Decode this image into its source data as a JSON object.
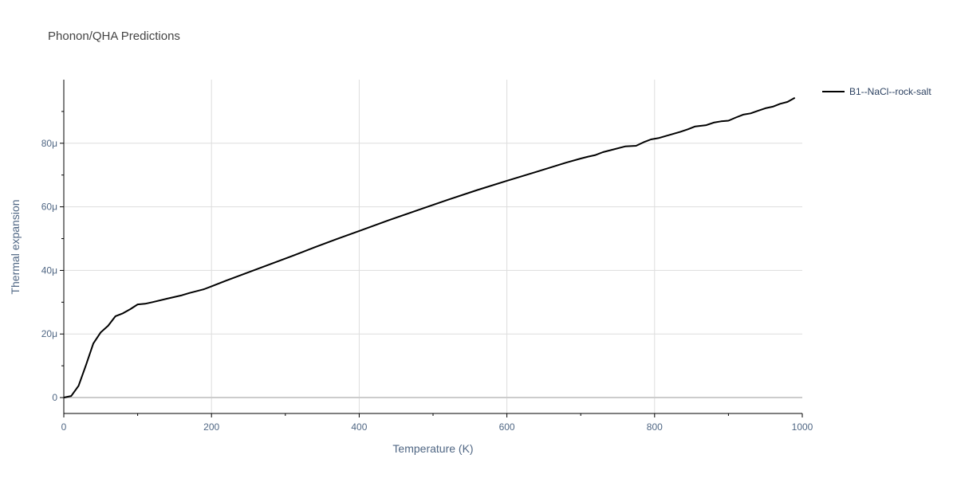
{
  "title": "Phonon/QHA Predictions",
  "colors": {
    "series": "#000000",
    "grid": "#dddddd",
    "text": "#506784"
  },
  "chart_data": {
    "type": "line",
    "xlabel": "Temperature (K)",
    "ylabel": "Thermal expansion",
    "xlim": [
      0,
      1000
    ],
    "ylim": [
      -5,
      100
    ],
    "xticks": [
      0,
      200,
      400,
      600,
      800,
      1000
    ],
    "xtick_labels": [
      "0",
      "200",
      "400",
      "600",
      "800",
      "1000"
    ],
    "yticks": [
      0,
      20,
      40,
      60,
      80
    ],
    "ytick_labels": [
      "0",
      "20μ",
      "40μ",
      "60μ",
      "80μ"
    ],
    "grid": true,
    "legend_position": "top-right",
    "series": [
      {
        "name": "B1--NaCl--rock-salt",
        "color": "#000000",
        "x": [
          0,
          10,
          20,
          30,
          40,
          50,
          60,
          70,
          80,
          90,
          100,
          110,
          120,
          140,
          160,
          170,
          190,
          200,
          220,
          250,
          280,
          310,
          340,
          370,
          400,
          440,
          480,
          520,
          560,
          600,
          640,
          680,
          700,
          710,
          720,
          730,
          740,
          760,
          775,
          785,
          795,
          805,
          820,
          835,
          845,
          855,
          870,
          880,
          890,
          900,
          910,
          920,
          930,
          940,
          950,
          960,
          970,
          980,
          990
        ],
        "y": [
          0,
          0.5,
          3.7,
          10.2,
          17.0,
          20.5,
          22.6,
          25.6,
          26.5,
          27.8,
          29.3,
          29.5,
          30.0,
          31.1,
          32.2,
          32.9,
          34.1,
          35.0,
          36.8,
          39.4,
          42.0,
          44.6,
          47.3,
          49.9,
          52.4,
          55.8,
          59.0,
          62.2,
          65.3,
          68.2,
          71.0,
          73.9,
          75.2,
          75.8,
          76.3,
          77.2,
          77.8,
          79.0,
          79.2,
          80.3,
          81.2,
          81.6,
          82.6,
          83.6,
          84.4,
          85.3,
          85.7,
          86.5,
          86.9,
          87.1,
          88.1,
          89.0,
          89.4,
          90.2,
          91.0,
          91.5,
          92.4,
          93.0,
          94.3
        ]
      }
    ]
  }
}
